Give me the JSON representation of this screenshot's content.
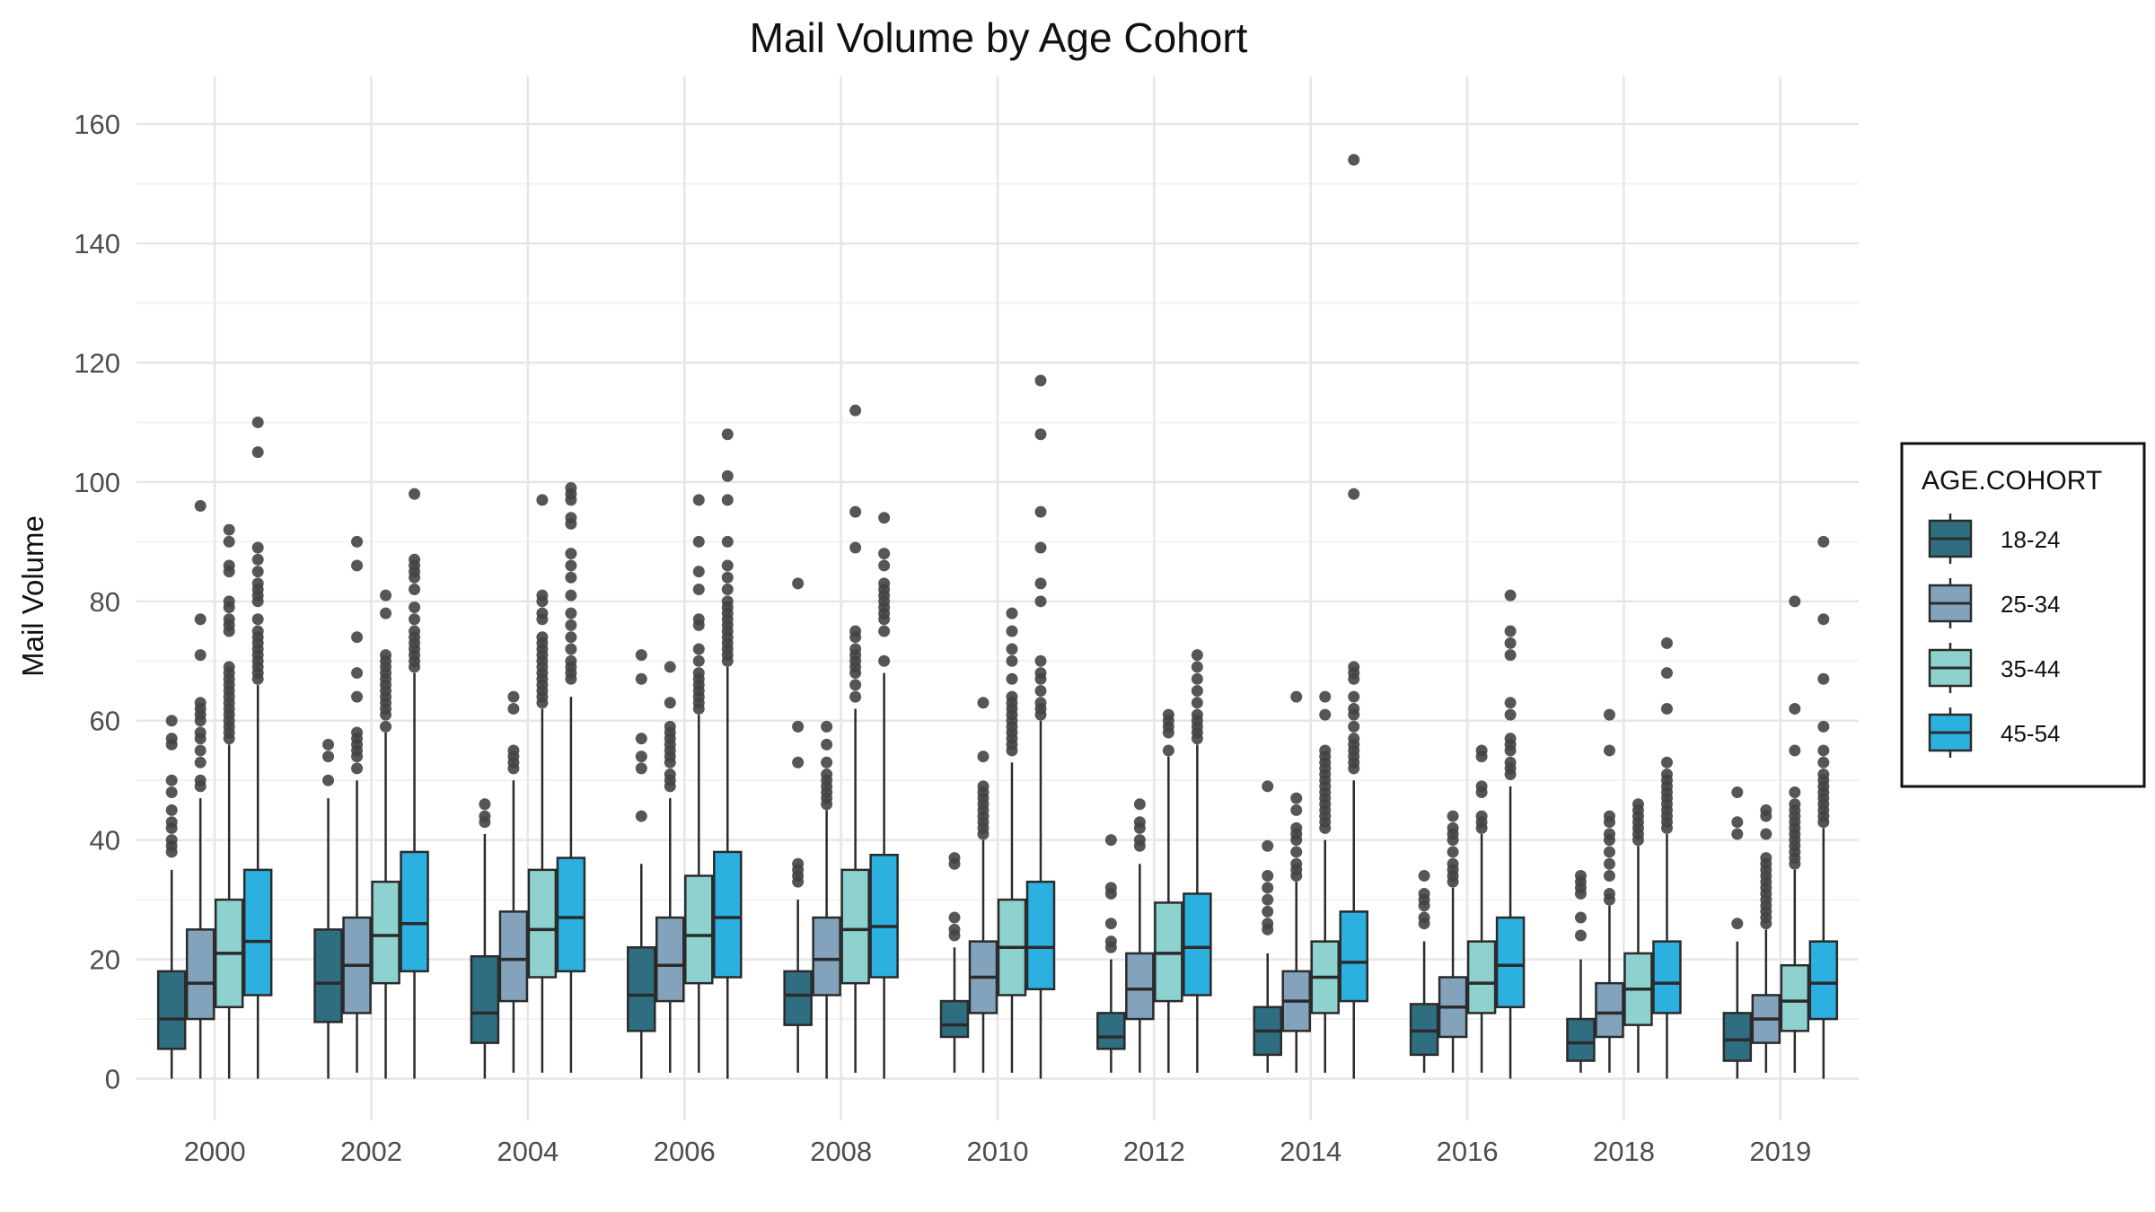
{
  "chart_data": {
    "type": "boxplot",
    "title": "Mail Volume by Age Cohort",
    "xlabel": "",
    "ylabel": "Mail Volume",
    "ylim": [
      -7,
      168
    ],
    "yticks": [
      0,
      20,
      40,
      60,
      80,
      100,
      120,
      140,
      160
    ],
    "grid": true,
    "legend": {
      "title": "AGE.COHORT",
      "position": "right"
    },
    "categories": [
      "2000",
      "2002",
      "2004",
      "2006",
      "2008",
      "2010",
      "2012",
      "2014",
      "2016",
      "2018",
      "2019"
    ],
    "colors": {
      "18-24": "#2e6e80",
      "25-34": "#82a3bb",
      "35-44": "#8ed2cf",
      "45-54": "#2bb0e0",
      "outline": "#2b2b2b",
      "outlier": "#444444"
    },
    "series": [
      {
        "name": "18-24",
        "boxes": [
          {
            "min": 0,
            "q1": 5,
            "median": 10,
            "q3": 18,
            "max": 35,
            "outliers": [
              38,
              39,
              40,
              42,
              43,
              45,
              48,
              50,
              56,
              57,
              60
            ]
          },
          {
            "min": 0,
            "q1": 9.5,
            "median": 16,
            "q3": 25,
            "max": 47,
            "outliers": [
              50,
              54,
              56
            ]
          },
          {
            "min": 0,
            "q1": 6,
            "median": 11,
            "q3": 20.5,
            "max": 41,
            "outliers": [
              43,
              44,
              46
            ]
          },
          {
            "min": 0,
            "q1": 8,
            "median": 14,
            "q3": 22,
            "max": 36,
            "outliers": [
              44,
              52,
              54,
              57,
              67,
              71
            ]
          },
          {
            "min": 1,
            "q1": 9,
            "median": 14,
            "q3": 18,
            "max": 30,
            "outliers": [
              33,
              34,
              35,
              36,
              53,
              59,
              83
            ]
          },
          {
            "min": 1,
            "q1": 7,
            "median": 9,
            "q3": 13,
            "max": 22,
            "outliers": [
              24,
              25,
              27,
              36,
              37
            ]
          },
          {
            "min": 1,
            "q1": 5,
            "median": 7,
            "q3": 11,
            "max": 20,
            "outliers": [
              22,
              23,
              26,
              31,
              32,
              40
            ]
          },
          {
            "min": 1,
            "q1": 4,
            "median": 8,
            "q3": 12,
            "max": 21,
            "outliers": [
              25,
              26,
              28,
              30,
              32,
              34,
              39,
              49
            ]
          },
          {
            "min": 1,
            "q1": 4,
            "median": 8,
            "q3": 12.5,
            "max": 23,
            "outliers": [
              26,
              27,
              29,
              30,
              31,
              34
            ]
          },
          {
            "min": 1,
            "q1": 3,
            "median": 6,
            "q3": 10,
            "max": 20,
            "outliers": [
              24,
              27,
              31,
              32,
              33,
              34
            ]
          },
          {
            "min": 0,
            "q1": 3,
            "median": 6.5,
            "q3": 11,
            "max": 23,
            "outliers": [
              26,
              41,
              43,
              48
            ]
          }
        ]
      },
      {
        "name": "25-34",
        "boxes": [
          {
            "min": 0,
            "q1": 10,
            "median": 16,
            "q3": 25,
            "max": 47,
            "outliers": [
              49,
              50,
              53,
              55,
              57,
              58,
              60,
              61,
              62,
              63,
              71,
              77,
              96
            ]
          },
          {
            "min": 1,
            "q1": 11,
            "median": 19,
            "q3": 27,
            "max": 50,
            "outliers": [
              52,
              54,
              55,
              56,
              57,
              58,
              64,
              68,
              74,
              86,
              90
            ]
          },
          {
            "min": 1,
            "q1": 13,
            "median": 20,
            "q3": 28,
            "max": 50,
            "outliers": [
              52,
              53,
              54,
              55,
              62,
              64
            ]
          },
          {
            "min": 1,
            "q1": 13,
            "median": 19,
            "q3": 27,
            "max": 47,
            "outliers": [
              49,
              50,
              51,
              53,
              54,
              55,
              56,
              57,
              58,
              59,
              63,
              69
            ]
          },
          {
            "min": 0,
            "q1": 14,
            "median": 20,
            "q3": 27,
            "max": 45,
            "outliers": [
              46,
              47,
              48,
              49,
              50,
              51,
              53,
              56,
              59
            ]
          },
          {
            "min": 1,
            "q1": 11,
            "median": 17,
            "q3": 23,
            "max": 40,
            "outliers": [
              41,
              42,
              43,
              44,
              45,
              46,
              47,
              48,
              49,
              54,
              63
            ]
          },
          {
            "min": 1,
            "q1": 10,
            "median": 15,
            "q3": 21,
            "max": 36,
            "outliers": [
              39,
              40,
              42,
              43,
              46
            ]
          },
          {
            "min": 1,
            "q1": 8,
            "median": 13,
            "q3": 18,
            "max": 33,
            "outliers": [
              34,
              35,
              36,
              38,
              40,
              41,
              42,
              45,
              47,
              64
            ]
          },
          {
            "min": 1,
            "q1": 7,
            "median": 12,
            "q3": 17,
            "max": 32,
            "outliers": [
              33,
              34,
              35,
              36,
              38,
              40,
              41,
              42,
              44
            ]
          },
          {
            "min": 1,
            "q1": 7,
            "median": 11,
            "q3": 16,
            "max": 29,
            "outliers": [
              30,
              31,
              34,
              36,
              38,
              40,
              41,
              43,
              44,
              55,
              61
            ]
          },
          {
            "min": 1,
            "q1": 6,
            "median": 10,
            "q3": 14,
            "max": 25,
            "outliers": [
              26,
              27,
              28,
              29,
              30,
              31,
              32,
              33,
              34,
              35,
              36,
              37,
              41,
              44,
              45
            ]
          }
        ]
      },
      {
        "name": "35-44",
        "boxes": [
          {
            "min": 0,
            "q1": 12,
            "median": 21,
            "q3": 30,
            "max": 56,
            "outliers": [
              57,
              58,
              59,
              60,
              61,
              62,
              63,
              64,
              65,
              66,
              67,
              68,
              69,
              75,
              76,
              77,
              79,
              80,
              85,
              86,
              90,
              92
            ]
          },
          {
            "min": 0,
            "q1": 16,
            "median": 24,
            "q3": 33,
            "max": 58,
            "outliers": [
              59,
              61,
              62,
              63,
              64,
              65,
              66,
              67,
              68,
              69,
              70,
              71,
              78,
              81
            ]
          },
          {
            "min": 1,
            "q1": 17,
            "median": 25,
            "q3": 35,
            "max": 62,
            "outliers": [
              63,
              64,
              65,
              66,
              67,
              68,
              69,
              70,
              71,
              72,
              73,
              74,
              77,
              78,
              80,
              81,
              97
            ]
          },
          {
            "min": 1,
            "q1": 16,
            "median": 24,
            "q3": 34,
            "max": 61,
            "outliers": [
              62,
              63,
              64,
              65,
              66,
              67,
              68,
              70,
              72,
              76,
              77,
              82,
              85,
              90,
              97
            ]
          },
          {
            "min": 1,
            "q1": 16,
            "median": 25,
            "q3": 35,
            "max": 62,
            "outliers": [
              64,
              66,
              68,
              69,
              70,
              71,
              72,
              74,
              75,
              89,
              95,
              112
            ]
          },
          {
            "min": 1,
            "q1": 14,
            "median": 22,
            "q3": 30,
            "max": 53,
            "outliers": [
              55,
              56,
              57,
              58,
              59,
              60,
              61,
              62,
              63,
              64,
              67,
              70,
              72,
              75,
              78
            ]
          },
          {
            "min": 1,
            "q1": 13,
            "median": 21,
            "q3": 29.5,
            "max": 54,
            "outliers": [
              55,
              58,
              59,
              60,
              61
            ]
          },
          {
            "min": 1,
            "q1": 11,
            "median": 17,
            "q3": 23,
            "max": 40,
            "outliers": [
              42,
              43,
              44,
              45,
              46,
              47,
              48,
              49,
              50,
              51,
              52,
              53,
              54,
              55,
              61,
              64
            ]
          },
          {
            "min": 1,
            "q1": 11,
            "median": 16,
            "q3": 23,
            "max": 41,
            "outliers": [
              42,
              43,
              44,
              48,
              49,
              54,
              55
            ]
          },
          {
            "min": 1,
            "q1": 9,
            "median": 15,
            "q3": 21,
            "max": 39,
            "outliers": [
              40,
              41,
              42,
              43,
              44,
              45,
              46
            ]
          },
          {
            "min": 1,
            "q1": 8,
            "median": 13,
            "q3": 19,
            "max": 35,
            "outliers": [
              36,
              37,
              38,
              39,
              40,
              41,
              42,
              43,
              44,
              45,
              46,
              48,
              55,
              62,
              80
            ]
          }
        ]
      },
      {
        "name": "45-54",
        "boxes": [
          {
            "min": 0,
            "q1": 14,
            "median": 23,
            "q3": 35,
            "max": 66,
            "outliers": [
              67,
              68,
              69,
              70,
              71,
              72,
              73,
              74,
              75,
              77,
              80,
              81,
              82,
              83,
              85,
              87,
              89,
              105,
              110
            ]
          },
          {
            "min": 0,
            "q1": 18,
            "median": 26,
            "q3": 38,
            "max": 68,
            "outliers": [
              69,
              70,
              71,
              72,
              73,
              74,
              75,
              77,
              79,
              82,
              84,
              85,
              86,
              87,
              98
            ]
          },
          {
            "min": 1,
            "q1": 18,
            "median": 27,
            "q3": 37,
            "max": 64,
            "outliers": [
              67,
              68,
              69,
              70,
              72,
              74,
              76,
              78,
              81,
              84,
              86,
              88,
              93,
              94,
              97,
              98,
              99
            ]
          },
          {
            "min": 0,
            "q1": 17,
            "median": 27,
            "q3": 38,
            "max": 69,
            "outliers": [
              70,
              71,
              72,
              73,
              74,
              75,
              76,
              77,
              78,
              79,
              80,
              82,
              84,
              86,
              90,
              97,
              101,
              108
            ]
          },
          {
            "min": 0,
            "q1": 17,
            "median": 25.5,
            "q3": 37.5,
            "max": 68,
            "outliers": [
              70,
              75,
              77,
              78,
              79,
              80,
              81,
              82,
              83,
              86,
              88,
              94
            ]
          },
          {
            "min": 0,
            "q1": 15,
            "median": 22,
            "q3": 33,
            "max": 60,
            "outliers": [
              61,
              62,
              63,
              65,
              67,
              68,
              70,
              80,
              83,
              89,
              95,
              108,
              117
            ]
          },
          {
            "min": 1,
            "q1": 14,
            "median": 22,
            "q3": 31,
            "max": 56,
            "outliers": [
              57,
              58,
              59,
              60,
              61,
              63,
              65,
              67,
              69,
              71
            ]
          },
          {
            "min": 0,
            "q1": 13,
            "median": 19.5,
            "q3": 28,
            "max": 50,
            "outliers": [
              52,
              53,
              54,
              55,
              56,
              57,
              59,
              61,
              62,
              64,
              67,
              68,
              69,
              98,
              154
            ]
          },
          {
            "min": 0,
            "q1": 12,
            "median": 19,
            "q3": 27,
            "max": 49,
            "outliers": [
              51,
              52,
              53,
              55,
              56,
              57,
              61,
              63,
              71,
              73,
              75,
              81
            ]
          },
          {
            "min": 0,
            "q1": 11,
            "median": 16,
            "q3": 23,
            "max": 41,
            "outliers": [
              42,
              43,
              44,
              45,
              46,
              47,
              48,
              49,
              50,
              51,
              53,
              62,
              68,
              73
            ]
          },
          {
            "min": 0,
            "q1": 10,
            "median": 16,
            "q3": 23,
            "max": 42,
            "outliers": [
              43,
              44,
              45,
              46,
              47,
              48,
              49,
              50,
              51,
              53,
              55,
              59,
              67,
              77,
              90
            ]
          }
        ]
      }
    ]
  }
}
